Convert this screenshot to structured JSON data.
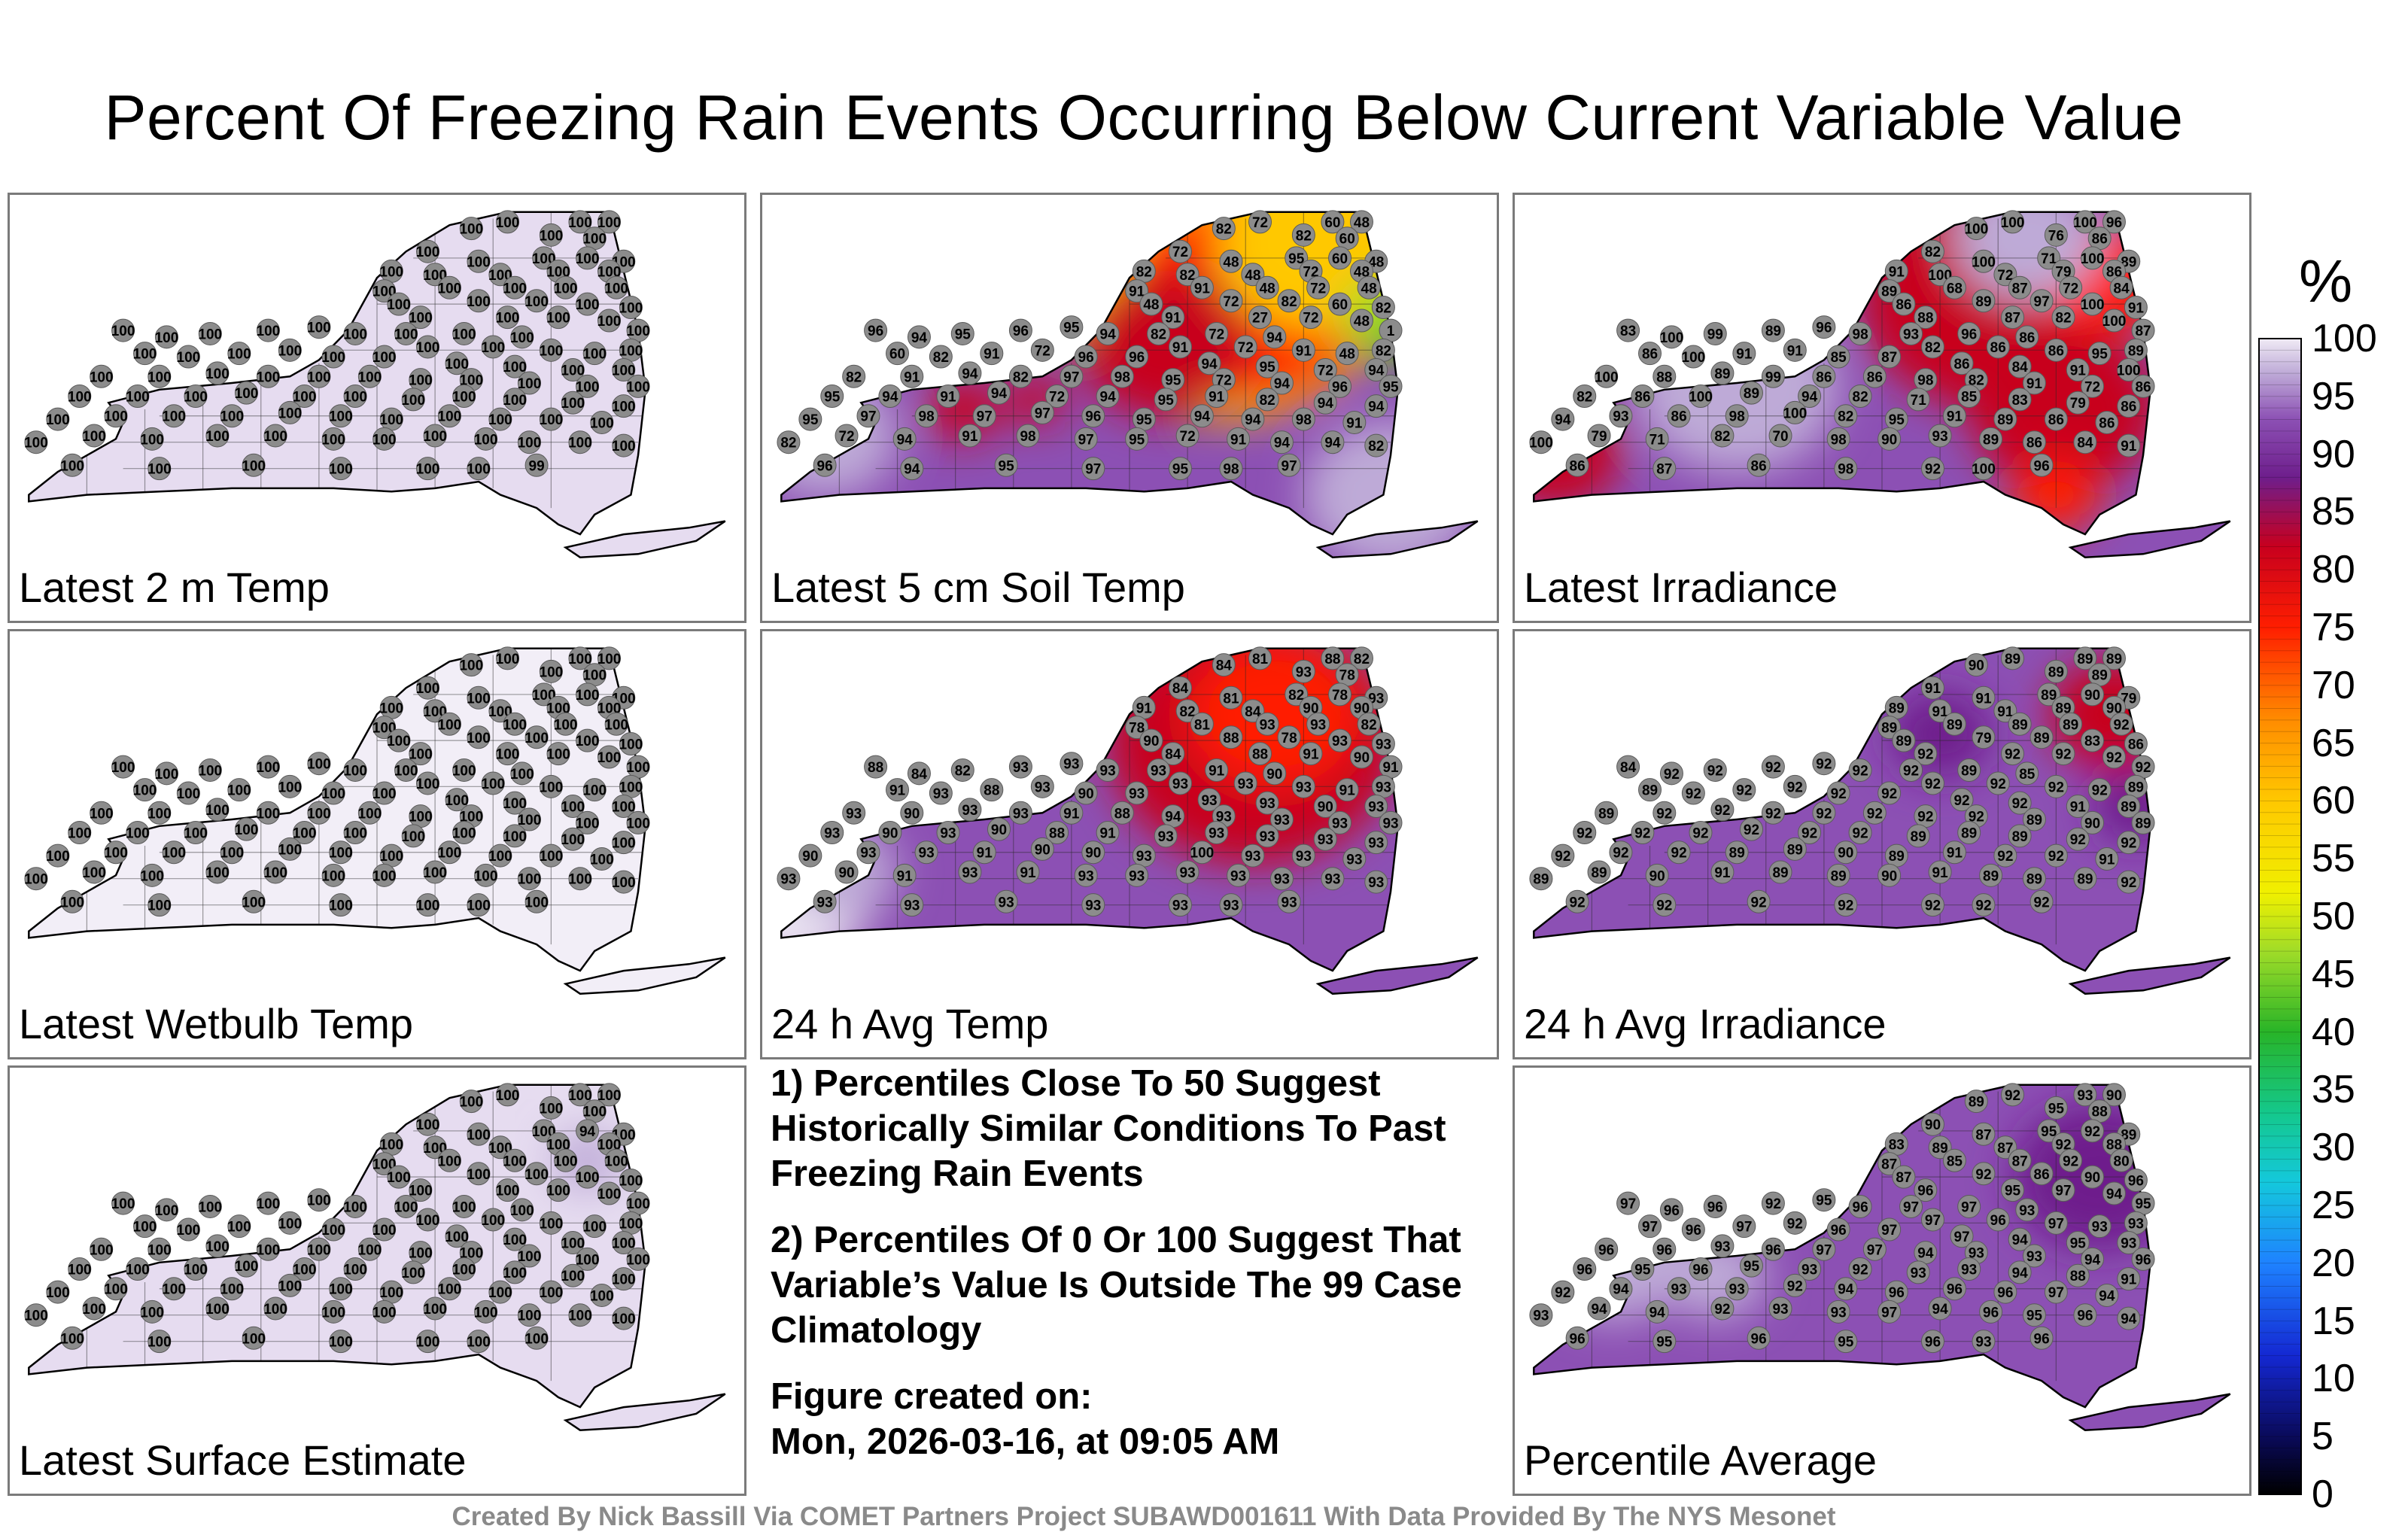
{
  "title": "Percent Of Freezing Rain Events Occurring Below Current Variable Value",
  "chart_data": {
    "type": "heatmap",
    "title": "Percent Of Freezing Rain Events Occurring Below Current Variable Value",
    "colorbar": {
      "unit": "%",
      "range": [
        0,
        100
      ],
      "ticks": [
        "100",
        "95",
        "90",
        "85",
        "80",
        "75",
        "70",
        "65",
        "60",
        "55",
        "50",
        "45",
        "40",
        "35",
        "30",
        "25",
        "20",
        "15",
        "10",
        "5",
        "0"
      ],
      "stops": [
        {
          "value": 0,
          "color": "#000000"
        },
        {
          "value": 5,
          "color": "#0a0a5a"
        },
        {
          "value": 12,
          "color": "#1428d2"
        },
        {
          "value": 20,
          "color": "#1e82ff"
        },
        {
          "value": 27,
          "color": "#14c8dc"
        },
        {
          "value": 33,
          "color": "#14c88c"
        },
        {
          "value": 40,
          "color": "#28b428"
        },
        {
          "value": 47,
          "color": "#a0dc28"
        },
        {
          "value": 52,
          "color": "#f0f000"
        },
        {
          "value": 60,
          "color": "#ffc800"
        },
        {
          "value": 67,
          "color": "#ff8c00"
        },
        {
          "value": 75,
          "color": "#ff1e00"
        },
        {
          "value": 82,
          "color": "#c8001e"
        },
        {
          "value": 88,
          "color": "#6e1e8c"
        },
        {
          "value": 93,
          "color": "#8c50b4"
        },
        {
          "value": 97,
          "color": "#beaad7"
        },
        {
          "value": 100,
          "color": "#f0ebf5"
        }
      ]
    },
    "panels": [
      {
        "label": "Latest 2 m Temp",
        "background": "#e6dcf0",
        "values": [
          100,
          100,
          100,
          100,
          100,
          100,
          100,
          100,
          100,
          100,
          100,
          100,
          100,
          100,
          100,
          100,
          100,
          100,
          100,
          100,
          100,
          100,
          100,
          100,
          100,
          100,
          100,
          100,
          100,
          100,
          100,
          100,
          100,
          100,
          100,
          100,
          100,
          100,
          100,
          100,
          100,
          100,
          100,
          100,
          100,
          100,
          100,
          100,
          100,
          100,
          100,
          100,
          100,
          100,
          100,
          100,
          100,
          100,
          100,
          100,
          100,
          100,
          100,
          100,
          100,
          100,
          100,
          100,
          100,
          100,
          100,
          100,
          100,
          100,
          100,
          100,
          100,
          100,
          100,
          100,
          100,
          100,
          100,
          100,
          100,
          100,
          100,
          100,
          100,
          100,
          100,
          100,
          100,
          100,
          100,
          100,
          100,
          100,
          100,
          100,
          100,
          100,
          100,
          100,
          100,
          100,
          99
        ],
        "zones": []
      },
      {
        "label": "Latest 5 cm Soil Temp",
        "background": "#8c50b4",
        "values": [
          72,
          60,
          48,
          82,
          82,
          60,
          72,
          48,
          95,
          60,
          48,
          82,
          82,
          48,
          72,
          48,
          91,
          91,
          48,
          72,
          48,
          48,
          72,
          82,
          60,
          82,
          91,
          27,
          72,
          48,
          1,
          82,
          72,
          94,
          96,
          94,
          95,
          96,
          95,
          94,
          91,
          72,
          91,
          48,
          82,
          60,
          82,
          91,
          72,
          96,
          96,
          94,
          95,
          72,
          94,
          82,
          91,
          94,
          82,
          97,
          98,
          95,
          72,
          94,
          96,
          95,
          95,
          94,
          91,
          94,
          72,
          94,
          95,
          91,
          82,
          94,
          94,
          95,
          97,
          98,
          97,
          97,
          96,
          95,
          94,
          94,
          98,
          91,
          82,
          72,
          94,
          91,
          98,
          97,
          95,
          72,
          91,
          94,
          94,
          82,
          96,
          94,
          95,
          97,
          95,
          98,
          97
        ],
        "zones": [
          {
            "cx": 0.63,
            "cy": 0.22,
            "r": 0.23,
            "color": "#ffc800"
          },
          {
            "cx": 0.66,
            "cy": 0.28,
            "r": 0.17,
            "color": "#ff1e00"
          },
          {
            "cx": 0.76,
            "cy": 0.12,
            "r": 0.14,
            "color": "#ffc800"
          },
          {
            "cx": 0.86,
            "cy": 0.34,
            "r": 0.07,
            "color": "#a0dc28"
          },
          {
            "cx": 0.88,
            "cy": 0.42,
            "r": 0.035,
            "color": "#28b428"
          },
          {
            "cx": 0.55,
            "cy": 0.42,
            "r": 0.12,
            "color": "#c8001e"
          },
          {
            "cx": 0.27,
            "cy": 0.62,
            "r": 0.05,
            "color": "#c8001e"
          },
          {
            "cx": 0.37,
            "cy": 0.59,
            "r": 0.04,
            "color": "#c8001e"
          },
          {
            "cx": 0.08,
            "cy": 0.7,
            "r": 0.1,
            "color": "#beaad7"
          },
          {
            "cx": 0.86,
            "cy": 0.88,
            "r": 0.12,
            "color": "#beaad7"
          }
        ]
      },
      {
        "label": "Latest Irradiance",
        "background": "#8c50b4",
        "values": [
          100,
          100,
          96,
          100,
          76,
          86,
          82,
          100,
          71,
          100,
          89,
          91,
          100,
          72,
          79,
          86,
          89,
          68,
          87,
          72,
          84,
          86,
          89,
          97,
          100,
          91,
          88,
          87,
          82,
          100,
          87,
          93,
          96,
          86,
          83,
          100,
          99,
          89,
          96,
          98,
          82,
          86,
          86,
          95,
          89,
          86,
          100,
          91,
          91,
          85,
          87,
          86,
          84,
          91,
          100,
          100,
          88,
          89,
          99,
          86,
          86,
          98,
          82,
          91,
          72,
          86,
          82,
          86,
          100,
          89,
          94,
          82,
          71,
          85,
          83,
          79,
          86,
          94,
          93,
          86,
          98,
          100,
          82,
          95,
          91,
          89,
          86,
          86,
          100,
          79,
          71,
          82,
          70,
          98,
          90,
          93,
          89,
          86,
          84,
          91,
          86,
          87,
          86,
          98,
          92,
          100,
          96
        ],
        "zones": [
          {
            "cx": 0.65,
            "cy": 0.28,
            "r": 0.18,
            "color": "#c8001e"
          },
          {
            "cx": 0.75,
            "cy": 0.62,
            "r": 0.13,
            "color": "#c8001e"
          },
          {
            "cx": 0.81,
            "cy": 0.22,
            "r": 0.09,
            "color": "#ff1e00"
          },
          {
            "cx": 0.74,
            "cy": 0.88,
            "r": 0.06,
            "color": "#ff1e00"
          },
          {
            "cx": 0.05,
            "cy": 0.75,
            "r": 0.09,
            "color": "#c8001e"
          },
          {
            "cx": 0.3,
            "cy": 0.55,
            "r": 0.14,
            "color": "#beaad7"
          },
          {
            "cx": 0.7,
            "cy": 0.1,
            "r": 0.1,
            "color": "#beaad7"
          }
        ]
      },
      {
        "label": "Latest Wetbulb Temp",
        "background": "#f2eef7",
        "values": [
          100,
          100,
          100,
          100,
          100,
          100,
          100,
          100,
          100,
          100,
          100,
          100,
          100,
          100,
          100,
          100,
          100,
          100,
          100,
          100,
          100,
          100,
          100,
          100,
          100,
          100,
          100,
          100,
          100,
          100,
          100,
          100,
          100,
          100,
          100,
          100,
          100,
          100,
          100,
          100,
          100,
          100,
          100,
          100,
          100,
          100,
          100,
          100,
          100,
          100,
          100,
          100,
          100,
          100,
          100,
          100,
          100,
          100,
          100,
          100,
          100,
          100,
          100,
          100,
          100,
          100,
          100,
          100,
          100,
          100,
          100,
          100,
          100,
          100,
          100,
          100,
          100,
          100,
          100,
          100,
          100,
          100,
          100,
          100,
          100,
          100,
          100,
          100,
          100,
          100,
          100,
          100,
          100,
          100,
          100,
          100,
          100,
          100,
          100,
          100,
          100,
          100,
          100,
          100,
          100,
          100,
          100
        ],
        "zones": []
      },
      {
        "label": "24 h Avg Temp",
        "background": "#8c50b4",
        "values": [
          81,
          88,
          82,
          84,
          93,
          78,
          84,
          81,
          82,
          78,
          93,
          91,
          82,
          84,
          90,
          90,
          78,
          81,
          93,
          93,
          82,
          90,
          88,
          78,
          93,
          93,
          84,
          88,
          91,
          90,
          91,
          93,
          91,
          90,
          88,
          84,
          82,
          93,
          93,
          93,
          93,
          93,
          93,
          91,
          93,
          91,
          93,
          88,
          93,
          90,
          93,
          93,
          93,
          90,
          93,
          93,
          90,
          93,
          93,
          91,
          88,
          94,
          93,
          93,
          93,
          93,
          93,
          90,
          93,
          90,
          88,
          91,
          93,
          93,
          93,
          93,
          93,
          90,
          93,
          93,
          91,
          90,
          90,
          93,
          100,
          93,
          93,
          93,
          93,
          90,
          91,
          93,
          91,
          93,
          93,
          93,
          93,
          93,
          93,
          93,
          93,
          93,
          93,
          93,
          93,
          93,
          93
        ],
        "zones": [
          {
            "cx": 0.67,
            "cy": 0.3,
            "r": 0.2,
            "color": "#c8001e"
          },
          {
            "cx": 0.7,
            "cy": 0.22,
            "r": 0.12,
            "color": "#ff1e00"
          },
          {
            "cx": 0.04,
            "cy": 0.8,
            "r": 0.1,
            "color": "#f0ebf5"
          },
          {
            "cx": 0.1,
            "cy": 0.7,
            "r": 0.08,
            "color": "#beaad7"
          }
        ]
      },
      {
        "label": "24 h Avg Irradiance",
        "background": "#8c50b4",
        "values": [
          89,
          89,
          89,
          90,
          89,
          89,
          91,
          91,
          89,
          90,
          79,
          89,
          91,
          91,
          89,
          90,
          89,
          89,
          89,
          89,
          92,
          89,
          79,
          89,
          83,
          86,
          92,
          92,
          92,
          92,
          92,
          92,
          89,
          85,
          84,
          92,
          92,
          92,
          92,
          92,
          92,
          92,
          92,
          92,
          89,
          89,
          92,
          92,
          92,
          92,
          92,
          92,
          92,
          91,
          89,
          89,
          92,
          92,
          92,
          92,
          92,
          92,
          92,
          89,
          90,
          89,
          92,
          92,
          92,
          92,
          92,
          92,
          89,
          89,
          89,
          92,
          92,
          92,
          92,
          92,
          89,
          89,
          90,
          89,
          91,
          92,
          92,
          91,
          89,
          89,
          90,
          91,
          89,
          89,
          90,
          91,
          89,
          89,
          89,
          92,
          92,
          92,
          92,
          92,
          92,
          92,
          92
        ],
        "zones": [
          {
            "cx": 0.82,
            "cy": 0.22,
            "r": 0.09,
            "color": "#c8001e"
          },
          {
            "cx": 0.58,
            "cy": 0.28,
            "r": 0.07,
            "color": "#6e1e8c"
          },
          {
            "cx": 0.85,
            "cy": 0.5,
            "r": 0.06,
            "color": "#6e1e8c"
          }
        ]
      },
      {
        "label": "Latest Surface Estimate",
        "background": "#e6dcf0",
        "values": [
          100,
          100,
          100,
          100,
          100,
          100,
          100,
          100,
          100,
          94,
          100,
          100,
          100,
          100,
          100,
          100,
          100,
          100,
          100,
          100,
          100,
          100,
          100,
          100,
          100,
          100,
          100,
          100,
          100,
          100,
          100,
          100,
          100,
          100,
          100,
          100,
          100,
          100,
          100,
          100,
          100,
          100,
          100,
          100,
          100,
          100,
          100,
          100,
          100,
          100,
          100,
          100,
          100,
          100,
          100,
          100,
          100,
          100,
          100,
          100,
          100,
          100,
          100,
          100,
          100,
          100,
          100,
          100,
          100,
          100,
          100,
          100,
          100,
          100,
          100,
          100,
          100,
          100,
          100,
          100,
          100,
          100,
          100,
          100,
          100,
          100,
          100,
          100,
          100,
          100,
          100,
          100,
          100,
          100,
          100,
          100,
          100,
          100,
          100,
          100,
          100,
          100,
          100,
          100,
          100,
          100,
          100
        ],
        "zones": [
          {
            "cx": 0.79,
            "cy": 0.25,
            "r": 0.05,
            "color": "#beaad7"
          }
        ]
      },
      {
        "label": "Percentile Average",
        "background": "#8c50b4",
        "values": [
          92,
          93,
          90,
          89,
          95,
          88,
          90,
          87,
          95,
          92,
          89,
          83,
          89,
          87,
          92,
          88,
          87,
          85,
          87,
          92,
          80,
          87,
          92,
          86,
          90,
          96,
          96,
          95,
          97,
          94,
          95,
          97,
          97,
          93,
          97,
          96,
          96,
          92,
          95,
          96,
          97,
          96,
          97,
          93,
          93,
          97,
          96,
          97,
          92,
          96,
          97,
          97,
          94,
          95,
          93,
          96,
          96,
          93,
          96,
          97,
          97,
          94,
          93,
          93,
          94,
          96,
          96,
          95,
          96,
          95,
          93,
          92,
          93,
          93,
          94,
          88,
          91,
          92,
          94,
          93,
          93,
          92,
          94,
          96,
          96,
          96,
          97,
          94,
          93,
          94,
          94,
          92,
          93,
          93,
          97,
          94,
          96,
          95,
          96,
          94,
          96,
          95,
          96,
          95,
          96,
          93,
          96
        ],
        "zones": [
          {
            "cx": 0.8,
            "cy": 0.3,
            "r": 0.12,
            "color": "#6e1e8c"
          },
          {
            "cx": 0.13,
            "cy": 0.55,
            "r": 0.1,
            "color": "#beaad7"
          },
          {
            "cx": 0.27,
            "cy": 0.6,
            "r": 0.07,
            "color": "#beaad7"
          }
        ]
      }
    ]
  },
  "notes": {
    "note1": "1) Percentiles Close To 50 Suggest Historically Similar Conditions To Past Freezing Rain Events",
    "note2": "2) Percentiles Of 0 Or 100 Suggest That Variable’s Value Is Outside The 99 Case Climatology",
    "created_label": "Figure created on:",
    "created_date": "Mon, 2026-03-16, at 09:05 AM"
  },
  "credit": "Created By Nick Bassill Via COMET Partners Project SUBAWD001611 With Data Provided By The NYS Mesonet"
}
